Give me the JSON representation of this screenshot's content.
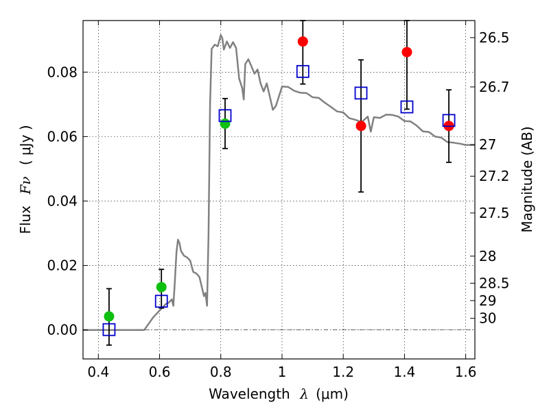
{
  "chart_data": {
    "type": "scatter",
    "xlabel": "Wavelength",
    "xlabel_symbol": "λ",
    "xlabel_unit": "(μm)",
    "ylabel": "Flux",
    "ylabel_symbol": "Fν",
    "ylabel_unit": "( μJy )",
    "y2label": "Magnitude (AB)",
    "xlim": [
      0.35,
      1.63
    ],
    "ylim": [
      -0.009,
      0.096
    ],
    "grid": true,
    "legend": "none",
    "x_ticks": [
      {
        "v": 0.4,
        "label": "0.4"
      },
      {
        "v": 0.6,
        "label": "0.6"
      },
      {
        "v": 0.8,
        "label": "0.8"
      },
      {
        "v": 1.0,
        "label": "1"
      },
      {
        "v": 1.2,
        "label": "1.2"
      },
      {
        "v": 1.4,
        "label": "1.4"
      },
      {
        "v": 1.6,
        "label": "1.6"
      }
    ],
    "y_ticks": [
      {
        "v": 0.0,
        "label": "0.00"
      },
      {
        "v": 0.02,
        "label": "0.02"
      },
      {
        "v": 0.04,
        "label": "0.04"
      },
      {
        "v": 0.06,
        "label": "0.06"
      },
      {
        "v": 0.08,
        "label": "0.08"
      }
    ],
    "y2_ticks": [
      {
        "label": "26.5",
        "flux": 0.0907
      },
      {
        "label": "26.7",
        "flux": 0.0754
      },
      {
        "label": "27",
        "flux": 0.0575
      },
      {
        "label": "27.2",
        "flux": 0.0477
      },
      {
        "label": "27.5",
        "flux": 0.0363
      },
      {
        "label": "28",
        "flux": 0.0229
      },
      {
        "label": "28.5",
        "flux": 0.0145
      },
      {
        "label": "29",
        "flux": 0.0091
      },
      {
        "label": "30",
        "flux": 0.0036
      }
    ],
    "series": [
      {
        "kind": "line",
        "color": "#808080",
        "x": [
          0.35,
          0.55,
          0.565,
          0.58,
          0.6,
          0.62,
          0.63,
          0.64,
          0.645,
          0.65,
          0.655,
          0.66,
          0.665,
          0.67,
          0.68,
          0.69,
          0.7,
          0.71,
          0.72,
          0.73,
          0.74,
          0.745,
          0.75,
          0.755,
          0.76,
          0.765,
          0.77,
          0.78,
          0.79,
          0.8,
          0.805,
          0.81,
          0.82,
          0.83,
          0.84,
          0.85,
          0.86,
          0.87,
          0.875,
          0.88,
          0.89,
          0.9,
          0.91,
          0.92,
          0.93,
          0.94,
          0.95,
          0.96,
          0.97,
          0.98,
          0.99,
          1.0,
          1.02,
          1.04,
          1.06,
          1.08,
          1.1,
          1.12,
          1.14,
          1.16,
          1.18,
          1.2,
          1.22,
          1.24,
          1.26,
          1.28,
          1.29,
          1.3,
          1.32,
          1.34,
          1.36,
          1.38,
          1.4,
          1.42,
          1.44,
          1.46,
          1.48,
          1.5,
          1.52,
          1.54,
          1.56,
          1.58,
          1.6,
          1.63
        ],
        "y": [
          0.0,
          0.0,
          0.002,
          0.004,
          0.006,
          0.008,
          0.0085,
          0.0095,
          0.0075,
          0.015,
          0.024,
          0.028,
          0.027,
          0.0245,
          0.023,
          0.0225,
          0.0215,
          0.018,
          0.0175,
          0.0165,
          0.0125,
          0.0105,
          0.0115,
          0.0075,
          0.03,
          0.07,
          0.0872,
          0.0885,
          0.088,
          0.0915,
          0.0905,
          0.087,
          0.0895,
          0.0875,
          0.0893,
          0.0875,
          0.078,
          0.075,
          0.0715,
          0.0825,
          0.084,
          0.0818,
          0.0795,
          0.0808,
          0.0765,
          0.074,
          0.0765,
          0.0725,
          0.0683,
          0.0695,
          0.0725,
          0.0755,
          0.0754,
          0.0742,
          0.0736,
          0.0735,
          0.0722,
          0.072,
          0.0705,
          0.0692,
          0.0678,
          0.0675,
          0.0657,
          0.0652,
          0.0645,
          0.0662,
          0.0615,
          0.066,
          0.0658,
          0.0668,
          0.0667,
          0.0662,
          0.0648,
          0.0647,
          0.0634,
          0.0616,
          0.0614,
          0.06,
          0.0597,
          0.0583,
          0.0581,
          0.0578,
          0.0574,
          0.0574
        ]
      },
      {
        "kind": "points",
        "marker": "filled-circle",
        "color": "#10c010",
        "x": [
          0.435,
          0.606,
          0.814
        ],
        "y": [
          0.0042,
          0.0133,
          0.064
        ]
      },
      {
        "kind": "points",
        "marker": "filled-circle",
        "color": "#ff0000",
        "x": [
          1.068,
          1.258,
          1.408,
          1.545
        ],
        "y": [
          0.0895,
          0.0633,
          0.0862,
          0.0633
        ]
      },
      {
        "kind": "points",
        "marker": "open-square",
        "color": "#0000cc",
        "x": [
          0.435,
          0.606,
          0.814,
          1.068,
          1.258,
          1.408,
          1.545
        ],
        "y": [
          0.0001,
          0.0089,
          0.0665,
          0.0802,
          0.0735,
          0.0692,
          0.065
        ],
        "yerr_low": [
          -0.0047,
          0.0068,
          0.0563,
          0.0763,
          0.0428,
          0.0685,
          0.052
        ],
        "yerr_high": [
          0.0128,
          0.0188,
          0.0718,
          0.096,
          0.0838,
          0.096,
          0.0745
        ]
      }
    ]
  }
}
